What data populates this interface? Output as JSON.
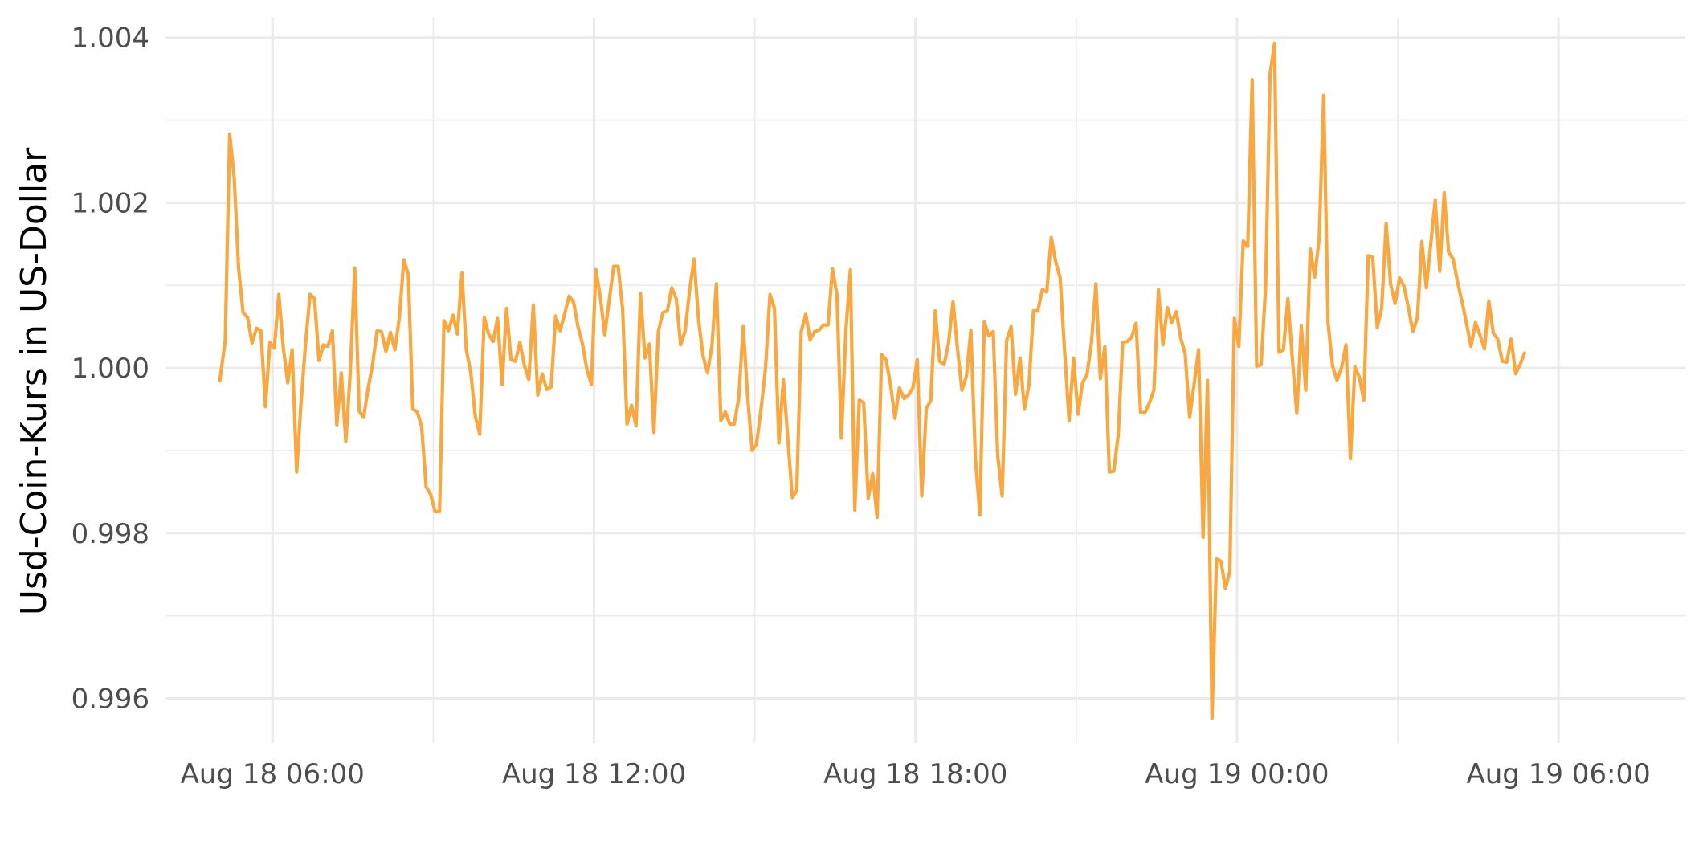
{
  "chart_data": {
    "type": "line",
    "title": "",
    "xlabel": "",
    "ylabel": "Usd-Coin-Kurs in US-Dollar",
    "x_range": [
      "2023-08-18T04:01:00",
      "2023-08-19T08:22:00"
    ],
    "ylim": [
      0.99546,
      1.00424
    ],
    "grid": true,
    "legend": "none",
    "line_color": "#F9A73E",
    "x_ticks": [
      {
        "value": "2023-08-18T06:00:00",
        "label": "Aug 18 06:00"
      },
      {
        "value": "2023-08-18T12:00:00",
        "label": "Aug 18 12:00"
      },
      {
        "value": "2023-08-18T18:00:00",
        "label": "Aug 18 18:00"
      },
      {
        "value": "2023-08-19T00:00:00",
        "label": "Aug 19 00:00"
      },
      {
        "value": "2023-08-19T06:00:00",
        "label": "Aug 19 06:00"
      }
    ],
    "x_minor_ticks": [
      "2023-08-18T09:00:00",
      "2023-08-18T15:00:00",
      "2023-08-18T21:00:00",
      "2023-08-19T03:00:00"
    ],
    "y_ticks": [
      {
        "value": 0.996,
        "label": "0.996"
      },
      {
        "value": 0.998,
        "label": "0.998"
      },
      {
        "value": 1.0,
        "label": "1.000"
      },
      {
        "value": 1.002,
        "label": "1.002"
      },
      {
        "value": 1.004,
        "label": "1.004"
      }
    ],
    "y_minor_ticks": [
      0.997,
      0.999,
      1.001,
      1.003
    ],
    "series": [
      {
        "x": [
          "2023-08-18T05:01:00",
          "2023-08-18T05:07:00",
          "2023-08-18T05:12:00",
          "2023-08-18T05:17:00",
          "2023-08-18T05:22:00",
          "2023-08-18T05:27:00",
          "2023-08-18T05:32:00",
          "2023-08-18T05:37:00",
          "2023-08-18T05:42:00",
          "2023-08-18T05:47:00",
          "2023-08-18T05:52:00",
          "2023-08-18T05:57:00",
          "2023-08-18T06:02:00",
          "2023-08-18T06:07:00",
          "2023-08-18T06:12:00",
          "2023-08-18T06:17:00",
          "2023-08-18T06:22:00",
          "2023-08-18T06:27:00",
          "2023-08-18T06:32:00",
          "2023-08-18T06:37:00",
          "2023-08-18T06:42:00",
          "2023-08-18T06:47:00",
          "2023-08-18T06:52:00",
          "2023-08-18T06:57:00",
          "2023-08-18T07:02:00",
          "2023-08-18T07:07:00",
          "2023-08-18T07:12:00",
          "2023-08-18T07:17:00",
          "2023-08-18T07:22:00",
          "2023-08-18T07:27:00",
          "2023-08-18T07:32:00",
          "2023-08-18T07:37:00",
          "2023-08-18T07:42:00",
          "2023-08-18T07:47:00",
          "2023-08-18T07:52:00",
          "2023-08-18T07:57:00",
          "2023-08-18T08:02:00",
          "2023-08-18T08:07:00",
          "2023-08-18T08:12:00",
          "2023-08-18T08:17:00",
          "2023-08-18T08:22:00",
          "2023-08-18T08:27:00",
          "2023-08-18T08:32:00",
          "2023-08-18T08:37:00",
          "2023-08-18T08:42:00",
          "2023-08-18T08:47:00",
          "2023-08-18T08:52:00",
          "2023-08-18T08:57:00",
          "2023-08-18T09:02:00",
          "2023-08-18T09:07:00",
          "2023-08-18T09:12:00",
          "2023-08-18T09:17:00",
          "2023-08-18T09:22:00",
          "2023-08-18T09:27:00",
          "2023-08-18T09:32:00",
          "2023-08-18T09:37:00",
          "2023-08-18T09:42:00",
          "2023-08-18T09:47:00",
          "2023-08-18T09:52:00",
          "2023-08-18T09:57:00",
          "2023-08-18T10:02:00",
          "2023-08-18T10:07:00",
          "2023-08-18T10:12:00",
          "2023-08-18T10:17:00",
          "2023-08-18T10:22:00",
          "2023-08-18T10:27:00",
          "2023-08-18T10:32:00",
          "2023-08-18T10:37:00",
          "2023-08-18T10:42:00",
          "2023-08-18T10:47:00",
          "2023-08-18T10:52:00",
          "2023-08-18T10:57:00",
          "2023-08-18T11:02:00",
          "2023-08-18T11:07:00",
          "2023-08-18T11:12:00",
          "2023-08-18T11:17:00",
          "2023-08-18T11:22:00",
          "2023-08-18T11:27:00",
          "2023-08-18T11:32:00",
          "2023-08-18T11:37:00",
          "2023-08-18T11:42:00",
          "2023-08-18T11:47:00",
          "2023-08-18T11:52:00",
          "2023-08-18T11:57:00",
          "2023-08-18T12:02:00",
          "2023-08-18T12:07:00",
          "2023-08-18T12:12:00",
          "2023-08-18T12:17:00",
          "2023-08-18T12:22:00",
          "2023-08-18T12:27:00",
          "2023-08-18T12:32:00",
          "2023-08-18T12:37:00",
          "2023-08-18T12:42:00",
          "2023-08-18T12:47:00",
          "2023-08-18T12:52:00",
          "2023-08-18T12:57:00",
          "2023-08-18T13:02:00",
          "2023-08-18T13:07:00",
          "2023-08-18T13:12:00",
          "2023-08-18T13:17:00",
          "2023-08-18T13:22:00",
          "2023-08-18T13:27:00",
          "2023-08-18T13:32:00",
          "2023-08-18T13:37:00",
          "2023-08-18T13:42:00",
          "2023-08-18T13:47:00",
          "2023-08-18T13:52:00",
          "2023-08-18T13:57:00",
          "2023-08-18T14:02:00",
          "2023-08-18T14:07:00",
          "2023-08-18T14:12:00",
          "2023-08-18T14:17:00",
          "2023-08-18T14:22:00",
          "2023-08-18T14:27:00",
          "2023-08-18T14:32:00",
          "2023-08-18T14:37:00",
          "2023-08-18T14:42:00",
          "2023-08-18T14:47:00",
          "2023-08-18T14:52:00",
          "2023-08-18T14:57:00",
          "2023-08-18T15:02:00",
          "2023-08-18T15:07:00",
          "2023-08-18T15:12:00",
          "2023-08-18T15:17:00",
          "2023-08-18T15:22:00",
          "2023-08-18T15:27:00",
          "2023-08-18T15:32:00",
          "2023-08-18T15:37:00",
          "2023-08-18T15:42:00",
          "2023-08-18T15:47:00",
          "2023-08-18T15:52:00",
          "2023-08-18T15:57:00",
          "2023-08-18T16:02:00",
          "2023-08-18T16:07:00",
          "2023-08-18T16:12:00",
          "2023-08-18T16:17:00",
          "2023-08-18T16:22:00",
          "2023-08-18T16:27:00",
          "2023-08-18T16:32:00",
          "2023-08-18T16:37:00",
          "2023-08-18T16:42:00",
          "2023-08-18T16:47:00",
          "2023-08-18T16:52:00",
          "2023-08-18T16:57:00",
          "2023-08-18T17:02:00",
          "2023-08-18T17:07:00",
          "2023-08-18T17:12:00",
          "2023-08-18T17:17:00",
          "2023-08-18T17:22:00",
          "2023-08-18T17:27:00",
          "2023-08-18T17:32:00",
          "2023-08-18T17:37:00",
          "2023-08-18T17:42:00",
          "2023-08-18T17:47:00",
          "2023-08-18T17:52:00",
          "2023-08-18T17:57:00",
          "2023-08-18T18:02:00",
          "2023-08-18T18:07:00",
          "2023-08-18T18:12:00",
          "2023-08-18T18:17:00",
          "2023-08-18T18:22:00",
          "2023-08-18T18:27:00",
          "2023-08-18T18:32:00",
          "2023-08-18T18:37:00",
          "2023-08-18T18:42:00",
          "2023-08-18T18:47:00",
          "2023-08-18T18:52:00",
          "2023-08-18T18:57:00",
          "2023-08-18T19:02:00",
          "2023-08-18T19:07:00",
          "2023-08-18T19:12:00",
          "2023-08-18T19:17:00",
          "2023-08-18T19:22:00",
          "2023-08-18T19:27:00",
          "2023-08-18T19:32:00",
          "2023-08-18T19:37:00",
          "2023-08-18T19:42:00",
          "2023-08-18T19:47:00",
          "2023-08-18T19:52:00",
          "2023-08-18T19:57:00",
          "2023-08-18T20:02:00",
          "2023-08-18T20:07:00",
          "2023-08-18T20:12:00",
          "2023-08-18T20:17:00",
          "2023-08-18T20:22:00",
          "2023-08-18T20:27:00",
          "2023-08-18T20:32:00",
          "2023-08-18T20:37:00",
          "2023-08-18T20:42:00",
          "2023-08-18T20:47:00",
          "2023-08-18T20:52:00",
          "2023-08-18T20:57:00",
          "2023-08-18T21:02:00",
          "2023-08-18T21:07:00",
          "2023-08-18T21:12:00",
          "2023-08-18T21:17:00",
          "2023-08-18T21:22:00",
          "2023-08-18T21:27:00",
          "2023-08-18T21:32:00",
          "2023-08-18T21:37:00",
          "2023-08-18T21:42:00",
          "2023-08-18T21:47:00",
          "2023-08-18T21:52:00",
          "2023-08-18T21:57:00",
          "2023-08-18T22:02:00",
          "2023-08-18T22:07:00",
          "2023-08-18T22:12:00",
          "2023-08-18T22:17:00",
          "2023-08-18T22:22:00",
          "2023-08-18T22:27:00",
          "2023-08-18T22:32:00",
          "2023-08-18T22:37:00",
          "2023-08-18T22:42:00",
          "2023-08-18T22:47:00",
          "2023-08-18T22:52:00",
          "2023-08-18T22:57:00",
          "2023-08-18T23:02:00",
          "2023-08-18T23:07:00",
          "2023-08-18T23:12:00",
          "2023-08-18T23:17:00",
          "2023-08-18T23:22:00",
          "2023-08-18T23:27:00",
          "2023-08-18T23:32:00",
          "2023-08-18T23:37:00",
          "2023-08-18T23:42:00",
          "2023-08-18T23:47:00",
          "2023-08-18T23:52:00",
          "2023-08-18T23:57:00",
          "2023-08-19T00:02:00",
          "2023-08-19T00:07:00",
          "2023-08-19T00:12:00",
          "2023-08-19T00:17:00",
          "2023-08-19T00:22:00",
          "2023-08-19T00:27:00",
          "2023-08-19T00:32:00",
          "2023-08-19T00:37:00",
          "2023-08-19T00:42:00",
          "2023-08-19T00:47:00",
          "2023-08-19T00:52:00",
          "2023-08-19T00:57:00",
          "2023-08-19T01:02:00",
          "2023-08-19T01:07:00",
          "2023-08-19T01:12:00",
          "2023-08-19T01:17:00",
          "2023-08-19T01:22:00",
          "2023-08-19T01:27:00",
          "2023-08-19T01:32:00",
          "2023-08-19T01:37:00",
          "2023-08-19T01:42:00",
          "2023-08-19T01:47:00",
          "2023-08-19T01:52:00",
          "2023-08-19T01:57:00",
          "2023-08-19T02:02:00",
          "2023-08-19T02:07:00",
          "2023-08-19T02:12:00",
          "2023-08-19T02:17:00",
          "2023-08-19T02:22:00",
          "2023-08-19T02:27:00",
          "2023-08-19T02:32:00",
          "2023-08-19T02:37:00",
          "2023-08-19T02:42:00",
          "2023-08-19T02:47:00",
          "2023-08-19T02:52:00",
          "2023-08-19T02:57:00",
          "2023-08-19T03:02:00",
          "2023-08-19T03:07:00",
          "2023-08-19T03:12:00",
          "2023-08-19T03:17:00",
          "2023-08-19T03:22:00",
          "2023-08-19T03:27:00",
          "2023-08-19T03:32:00",
          "2023-08-19T03:37:00",
          "2023-08-19T03:42:00",
          "2023-08-19T03:47:00",
          "2023-08-19T03:52:00",
          "2023-08-19T03:57:00",
          "2023-08-19T04:02:00",
          "2023-08-19T04:07:00",
          "2023-08-19T04:12:00",
          "2023-08-19T04:17:00",
          "2023-08-19T04:22:00",
          "2023-08-19T04:27:00",
          "2023-08-19T04:32:00",
          "2023-08-19T04:37:00",
          "2023-08-19T04:42:00",
          "2023-08-19T04:47:00",
          "2023-08-19T04:52:00",
          "2023-08-19T04:57:00",
          "2023-08-19T05:02:00",
          "2023-08-19T05:07:00",
          "2023-08-19T05:12:00",
          "2023-08-19T05:17:00",
          "2023-08-19T05:22:00"
        ],
        "y": [
          0.99985,
          1.00033,
          1.00283,
          1.00231,
          1.00121,
          1.00067,
          1.00061,
          1.0003,
          1.00048,
          1.00045,
          0.99953,
          1.00031,
          1.00024,
          1.00089,
          1.00025,
          0.99982,
          1.00022,
          0.99874,
          0.9996,
          1.0003,
          1.00089,
          1.00084,
          1.00009,
          1.00028,
          1.00026,
          1.00045,
          0.99931,
          0.99994,
          0.99911,
          0.99994,
          1.00121,
          0.99948,
          0.9994,
          0.99975,
          1.00004,
          1.00045,
          1.00044,
          1.0002,
          1.00043,
          1.00022,
          1.00061,
          1.00131,
          1.00113,
          0.9995,
          0.99947,
          0.99929,
          0.99856,
          0.99847,
          0.99826,
          0.99826,
          1.00057,
          1.00045,
          1.00064,
          1.00041,
          1.00115,
          1.00022,
          0.99994,
          0.99942,
          0.9992,
          1.00061,
          1.00041,
          1.00032,
          1.0006,
          0.9998,
          1.00072,
          1.0001,
          1.00008,
          1.00031,
          1.00003,
          0.99986,
          1.00076,
          0.99967,
          0.99993,
          0.99974,
          0.99977,
          1.00063,
          1.00045,
          1.00065,
          1.00087,
          1.0008,
          1.0005,
          1.00029,
          0.99998,
          0.9998,
          1.00119,
          1.00086,
          1.0004,
          1.00082,
          1.00123,
          1.00123,
          1.00071,
          0.99932,
          0.99955,
          0.9993,
          1.0009,
          1.00012,
          1.00029,
          0.99922,
          1.00044,
          1.00067,
          1.00069,
          1.00097,
          1.00084,
          1.00028,
          1.00045,
          1.00094,
          1.00132,
          1.00058,
          1.00015,
          0.99994,
          1.00026,
          1.00102,
          0.99936,
          0.99947,
          0.99932,
          0.99932,
          0.99963,
          1.0005,
          0.99965,
          0.999,
          0.99908,
          0.9995,
          1.0,
          1.00089,
          1.00072,
          0.99909,
          0.99986,
          0.99915,
          0.99843,
          0.99852,
          1.00044,
          1.00065,
          1.00034,
          1.00044,
          1.00046,
          1.00052,
          1.00052,
          1.0012,
          1.00089,
          0.99915,
          1.00045,
          1.00119,
          0.99828,
          0.99961,
          0.99958,
          0.99842,
          0.99872,
          0.99819,
          1.00016,
          1.0001,
          0.9998,
          0.99939,
          0.99976,
          0.99963,
          0.99967,
          0.99976,
          1.0001,
          0.99845,
          0.99951,
          0.9996,
          1.00069,
          1.00008,
          1.00004,
          1.0003,
          1.0008,
          1.00023,
          0.99973,
          0.9999,
          1.00046,
          0.99891,
          0.99822,
          1.00056,
          1.00039,
          1.00044,
          0.99894,
          0.99845,
          1.00033,
          1.0005,
          0.99968,
          1.00012,
          0.9995,
          0.99979,
          1.00069,
          1.00069,
          1.00095,
          1.00092,
          1.00158,
          1.00128,
          1.00109,
          1.00019,
          0.99936,
          1.00012,
          0.99944,
          0.99982,
          0.99992,
          1.0003,
          1.00102,
          0.99987,
          1.00026,
          0.99874,
          0.99875,
          0.99919,
          1.00031,
          1.00032,
          1.00037,
          1.00054,
          0.99946,
          0.99946,
          0.99958,
          0.99973,
          1.00095,
          1.00028,
          1.00073,
          1.00055,
          1.00068,
          1.00036,
          1.00017,
          0.9994,
          0.99981,
          1.00022,
          0.99795,
          0.99985,
          0.99576,
          0.99769,
          0.99766,
          0.99733,
          0.99754,
          1.0006,
          1.00026,
          1.00154,
          1.00147,
          1.00349,
          1.00002,
          1.00004,
          1.00097,
          1.00356,
          1.00393,
          1.00019,
          1.00022,
          1.00084,
          1.0001,
          0.99945,
          1.00051,
          0.99973,
          1.00144,
          1.0011,
          1.00156,
          1.0033,
          1.00054,
          1.00002,
          0.99985,
          1.0,
          1.00028,
          0.9989,
          1.00001,
          0.99989,
          0.99961,
          1.00136,
          1.00134,
          1.00049,
          1.00072,
          1.00175,
          1.00102,
          1.00078,
          1.00109,
          1.00099,
          1.00072,
          1.00044,
          1.00061,
          1.00153,
          1.00097,
          1.00151,
          1.00203,
          1.00117,
          1.00212,
          1.0014,
          1.00132,
          1.00104,
          1.0008,
          1.00054,
          1.00026,
          1.00055,
          1.0004,
          1.00023,
          1.00081,
          1.00042,
          1.00035,
          1.00008,
          1.00007,
          1.00035,
          0.99993,
          1.00004,
          1.00018
        ]
      }
    ]
  }
}
